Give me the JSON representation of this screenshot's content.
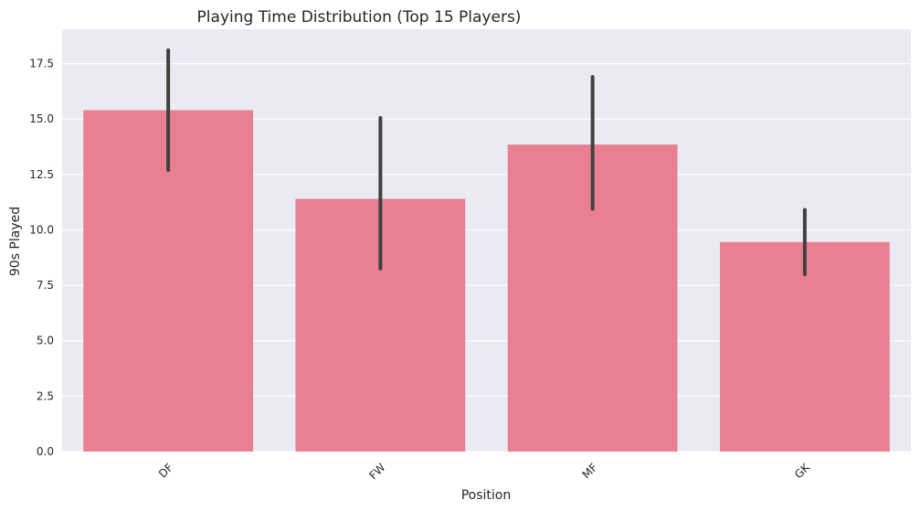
{
  "chart_data": {
    "type": "bar",
    "title": "Playing Time Distribution (Top 15 Players)",
    "xlabel": "Position",
    "ylabel": "90s Played",
    "categories": [
      "DF",
      "FW",
      "MF",
      "GK"
    ],
    "values": [
      15.4,
      11.4,
      13.85,
      9.45
    ],
    "error_low": [
      12.7,
      8.25,
      10.95,
      8.0
    ],
    "error_high": [
      18.1,
      15.05,
      16.9,
      10.9
    ],
    "ylim": [
      0,
      19.05
    ],
    "yticks": [
      "0.0",
      "2.5",
      "5.0",
      "7.5",
      "10.0",
      "12.5",
      "15.0",
      "17.5"
    ],
    "ytick_values": [
      0,
      2.5,
      5,
      7.5,
      10,
      12.5,
      15,
      17.5
    ],
    "grid": true,
    "x_tick_rotation": 45,
    "colors": {
      "bar": "#e88092",
      "error_bar": "#404040",
      "plot_background": "#eaeaf2",
      "grid": "#ffffff"
    }
  }
}
